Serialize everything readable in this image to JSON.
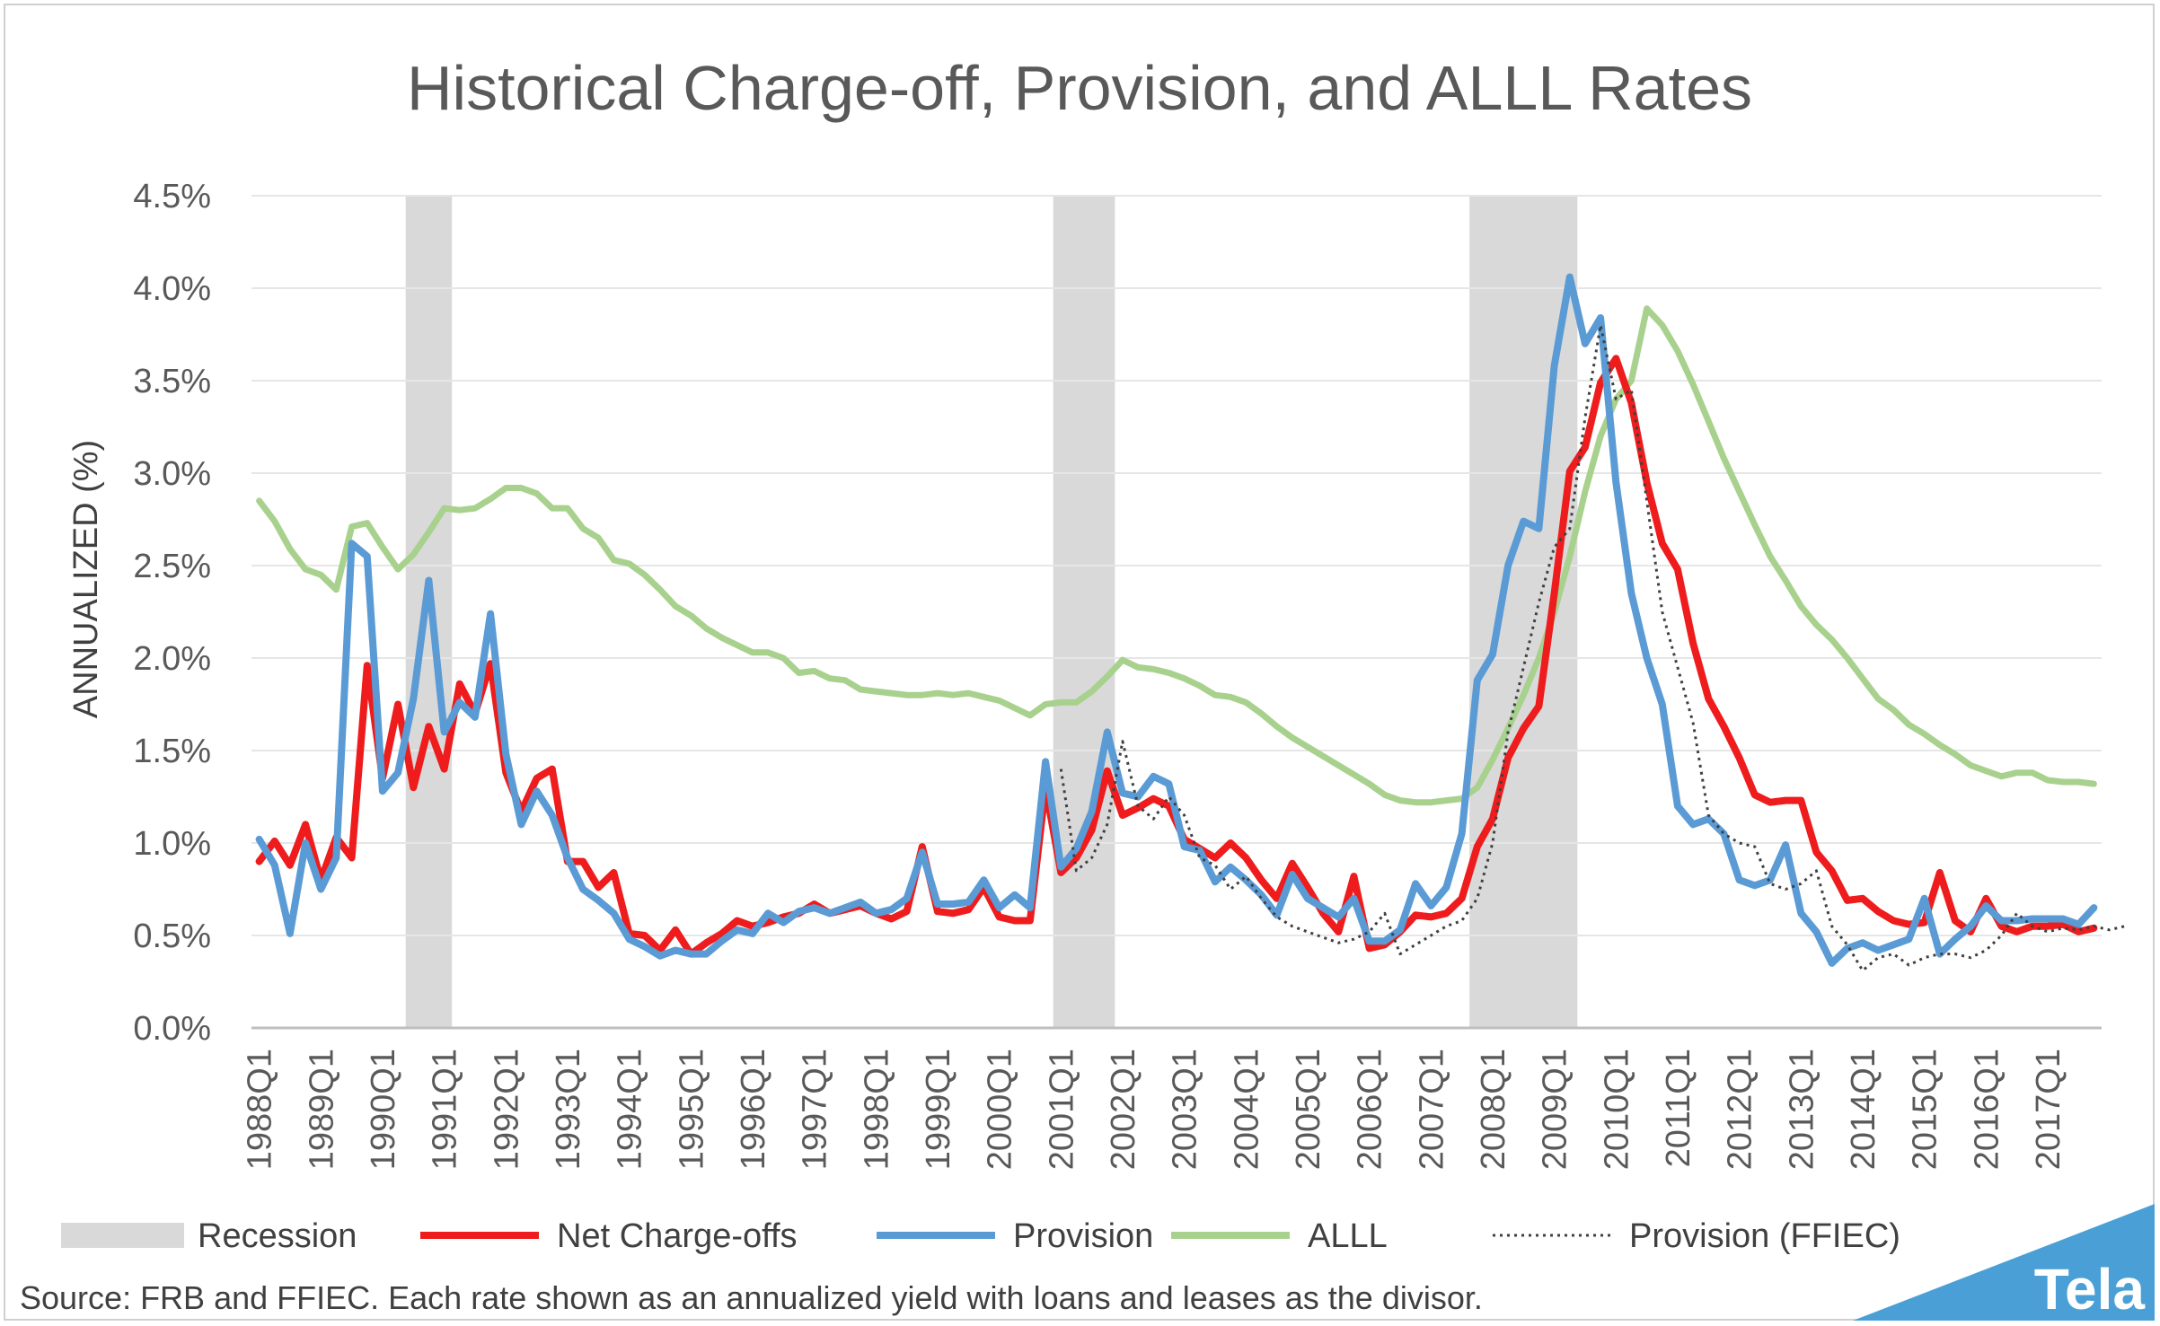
{
  "chart_data": {
    "type": "line",
    "title": "Historical Charge-off, Provision, and ALLL Rates",
    "xlabel": "",
    "ylabel": "ANNUALIZED (%)",
    "ylim": [
      0,
      4.5
    ],
    "ytick_values": [
      0,
      0.5,
      1.0,
      1.5,
      2.0,
      2.5,
      3.0,
      3.5,
      4.0,
      4.5
    ],
    "ytick_labels": [
      "0.0%",
      "0.5%",
      "1.0%",
      "1.5%",
      "2.0%",
      "2.5%",
      "3.0%",
      "3.5%",
      "4.0%",
      "4.5%"
    ],
    "xtick_labels": [
      "1988Q1",
      "1989Q1",
      "1990Q1",
      "1991Q1",
      "1992Q1",
      "1993Q1",
      "1994Q1",
      "1995Q1",
      "1996Q1",
      "1997Q1",
      "1998Q1",
      "1999Q1",
      "2000Q1",
      "2001Q1",
      "2002Q1",
      "2003Q1",
      "2004Q1",
      "2005Q1",
      "2006Q1",
      "2007Q1",
      "2008Q1",
      "2009Q1",
      "2010Q1",
      "2011Q1",
      "2012Q1",
      "2013Q1",
      "2014Q1",
      "2015Q1",
      "2016Q1",
      "2017Q1"
    ],
    "first_period": "1988Q1",
    "last_period": "2017Q4",
    "grid": true,
    "legend_position": "bottom",
    "recession_periods": [
      {
        "start": "1990Q3",
        "end": "1991Q1"
      },
      {
        "start": "2001Q1",
        "end": "2001Q4"
      },
      {
        "start": "2007Q4",
        "end": "2009Q2"
      }
    ],
    "legend": [
      {
        "name": "Recession",
        "kind": "band",
        "color": "#d9d9d9"
      },
      {
        "name": "Net Charge-offs",
        "kind": "line",
        "color": "#ee1c1c"
      },
      {
        "name": "Provision",
        "kind": "line",
        "color": "#5b9bd5"
      },
      {
        "name": "ALLL",
        "kind": "line",
        "color": "#a9d18e"
      },
      {
        "name": "Provision (FFIEC)",
        "kind": "dotted",
        "color": "#404040"
      }
    ],
    "series": [
      {
        "name": "ALLL",
        "color": "#a9d18e",
        "style": "solid",
        "start": "1988Q1",
        "values": [
          2.85,
          2.74,
          2.59,
          2.48,
          2.45,
          2.37,
          2.71,
          2.73,
          2.6,
          2.48,
          2.56,
          2.68,
          2.81,
          2.8,
          2.81,
          2.86,
          2.92,
          2.92,
          2.89,
          2.81,
          2.81,
          2.7,
          2.65,
          2.53,
          2.51,
          2.45,
          2.37,
          2.28,
          2.23,
          2.16,
          2.11,
          2.07,
          2.03,
          2.03,
          2.0,
          1.92,
          1.93,
          1.89,
          1.88,
          1.83,
          1.82,
          1.81,
          1.8,
          1.8,
          1.81,
          1.8,
          1.81,
          1.79,
          1.77,
          1.73,
          1.69,
          1.75,
          1.76,
          1.76,
          1.82,
          1.9,
          1.99,
          1.95,
          1.94,
          1.92,
          1.89,
          1.85,
          1.8,
          1.79,
          1.76,
          1.7,
          1.63,
          1.57,
          1.52,
          1.47,
          1.42,
          1.37,
          1.32,
          1.26,
          1.23,
          1.22,
          1.22,
          1.23,
          1.24,
          1.3,
          1.45,
          1.62,
          1.8,
          2.0,
          2.25,
          2.55,
          2.9,
          3.2,
          3.4,
          3.5,
          3.89,
          3.8,
          3.66,
          3.48,
          3.28,
          3.08,
          2.9,
          2.72,
          2.55,
          2.42,
          2.28,
          2.18,
          2.1,
          2.0,
          1.89,
          1.78,
          1.72,
          1.64,
          1.59,
          1.53,
          1.48,
          1.42,
          1.39,
          1.36,
          1.38,
          1.38,
          1.34,
          1.33,
          1.33,
          1.32
        ]
      },
      {
        "name": "Net Charge-offs",
        "color": "#ee1c1c",
        "style": "solid",
        "start": "1988Q1",
        "values": [
          0.9,
          1.01,
          0.88,
          1.1,
          0.8,
          1.03,
          0.92,
          1.96,
          1.35,
          1.75,
          1.3,
          1.63,
          1.4,
          1.86,
          1.7,
          1.97,
          1.38,
          1.17,
          1.35,
          1.4,
          0.9,
          0.9,
          0.76,
          0.84,
          0.51,
          0.5,
          0.42,
          0.53,
          0.4,
          0.46,
          0.51,
          0.58,
          0.55,
          0.57,
          0.6,
          0.62,
          0.67,
          0.62,
          0.64,
          0.66,
          0.62,
          0.59,
          0.63,
          0.98,
          0.63,
          0.62,
          0.64,
          0.76,
          0.6,
          0.58,
          0.58,
          1.3,
          0.84,
          0.92,
          1.07,
          1.39,
          1.15,
          1.19,
          1.24,
          1.2,
          1.02,
          0.97,
          0.92,
          1.0,
          0.92,
          0.8,
          0.7,
          0.89,
          0.76,
          0.62,
          0.52,
          0.82,
          0.43,
          0.45,
          0.52,
          0.61,
          0.6,
          0.62,
          0.7,
          0.98,
          1.13,
          1.46,
          1.62,
          1.74,
          2.35,
          3.01,
          3.14,
          3.49,
          3.62,
          3.38,
          2.95,
          2.62,
          2.48,
          2.08,
          1.78,
          1.63,
          1.46,
          1.26,
          1.22,
          1.23,
          1.23,
          0.95,
          0.85,
          0.69,
          0.7,
          0.63,
          0.58,
          0.56,
          0.57,
          0.84,
          0.58,
          0.52,
          0.7,
          0.55,
          0.52,
          0.55,
          0.55,
          0.56,
          0.52,
          0.54
        ]
      },
      {
        "name": "Provision",
        "color": "#5b9bd5",
        "style": "solid",
        "start": "1988Q1",
        "values": [
          1.02,
          0.88,
          0.51,
          1.0,
          0.75,
          0.92,
          2.62,
          2.55,
          1.28,
          1.38,
          1.78,
          2.42,
          1.6,
          1.76,
          1.68,
          2.24,
          1.48,
          1.1,
          1.28,
          1.15,
          0.92,
          0.75,
          0.69,
          0.62,
          0.48,
          0.44,
          0.39,
          0.42,
          0.4,
          0.4,
          0.47,
          0.53,
          0.51,
          0.62,
          0.57,
          0.63,
          0.65,
          0.62,
          0.65,
          0.68,
          0.62,
          0.64,
          0.7,
          0.95,
          0.67,
          0.67,
          0.68,
          0.8,
          0.65,
          0.72,
          0.65,
          1.44,
          0.87,
          0.97,
          1.17,
          1.6,
          1.27,
          1.25,
          1.36,
          1.32,
          0.98,
          0.96,
          0.79,
          0.87,
          0.8,
          0.72,
          0.61,
          0.83,
          0.7,
          0.65,
          0.6,
          0.7,
          0.47,
          0.47,
          0.53,
          0.78,
          0.66,
          0.76,
          1.05,
          1.88,
          2.02,
          2.5,
          2.74,
          2.7,
          3.58,
          4.06,
          3.7,
          3.84,
          2.95,
          2.35,
          2.0,
          1.75,
          1.2,
          1.1,
          1.13,
          1.05,
          0.8,
          0.77,
          0.8,
          0.99,
          0.62,
          0.52,
          0.35,
          0.43,
          0.46,
          0.42,
          0.45,
          0.48,
          0.7,
          0.4,
          0.48,
          0.55,
          0.66,
          0.58,
          0.58,
          0.59,
          0.59,
          0.59,
          0.56,
          0.65
        ]
      },
      {
        "name": "Provision (FFIEC)",
        "color": "#404040",
        "style": "dotted",
        "start": "2001Q1",
        "values": [
          1.4,
          0.85,
          0.92,
          1.1,
          1.55,
          1.2,
          1.13,
          1.25,
          1.15,
          0.92,
          0.88,
          0.75,
          0.82,
          0.7,
          0.6,
          0.55,
          0.52,
          0.49,
          0.46,
          0.48,
          0.52,
          0.62,
          0.4,
          0.45,
          0.5,
          0.55,
          0.58,
          0.7,
          1.0,
          1.6,
          1.95,
          2.3,
          2.6,
          2.7,
          3.3,
          3.8,
          3.4,
          3.45,
          2.85,
          2.25,
          1.95,
          1.65,
          1.15,
          1.05,
          1.0,
          0.98,
          0.78,
          0.75,
          0.78,
          0.85,
          0.55,
          0.45,
          0.31,
          0.38,
          0.4,
          0.34,
          0.38,
          0.4,
          0.4,
          0.38,
          0.42,
          0.5,
          0.62,
          0.55,
          0.52,
          0.54,
          0.53,
          0.55,
          0.53,
          0.55
        ]
      }
    ]
  },
  "source": "Source: FRB and FFIEC. Each rate shown as an annualized yield with loans and leases as the divisor.",
  "brand": "Tela",
  "brand_color": "#4aa0d6"
}
